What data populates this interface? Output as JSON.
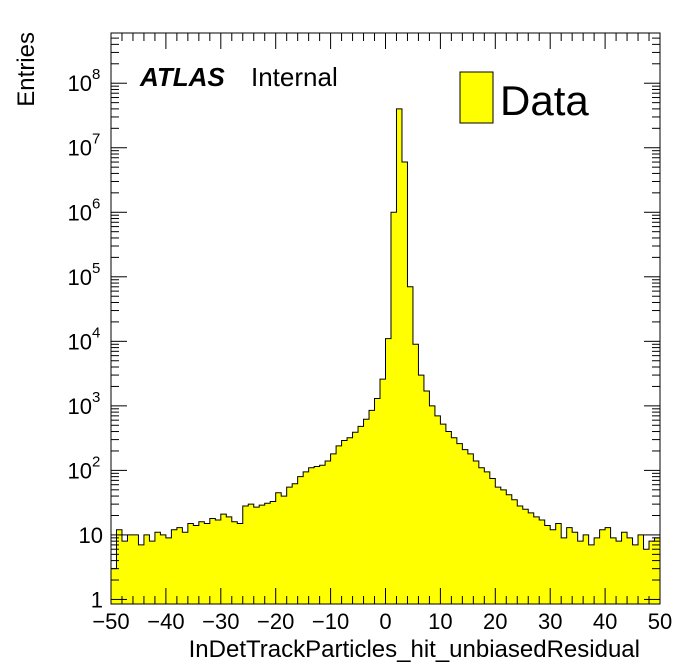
{
  "chart_data": {
    "type": "bar",
    "xlabel": "InDetTrackParticles_hit_unbiasedResidual",
    "ylabel": "Entries",
    "xlim": [
      -50,
      50
    ],
    "ylim": [
      0.85,
      600000000
    ],
    "y_log_scale": true,
    "grid": false,
    "bin_width": 1,
    "x_tick_labels": [
      "−50",
      "−40",
      "−30",
      "−20",
      "−10",
      "0",
      "10",
      "20",
      "30",
      "40",
      "50"
    ],
    "y_tick_labels": [
      {
        "value": 1,
        "base": "1",
        "exp": ""
      },
      {
        "value": 10,
        "base": "10",
        "exp": ""
      },
      {
        "value": 100,
        "base": "10",
        "exp": "2"
      },
      {
        "value": 1000,
        "base": "10",
        "exp": "3"
      },
      {
        "value": 10000,
        "base": "10",
        "exp": "4"
      },
      {
        "value": 100000,
        "base": "10",
        "exp": "5"
      },
      {
        "value": 1000000,
        "base": "10",
        "exp": "6"
      },
      {
        "value": 10000000,
        "base": "10",
        "exp": "7"
      },
      {
        "value": 100000000,
        "base": "10",
        "exp": "8"
      }
    ],
    "series": [
      {
        "name": "Data",
        "color": "#ffff00",
        "bin_edges_start": -50,
        "values": [
          3,
          12,
          8,
          10,
          10,
          7,
          10,
          8,
          11,
          10,
          9,
          12,
          13,
          11,
          15,
          14,
          16,
          15,
          18,
          17,
          21,
          19,
          16,
          15,
          28,
          30,
          27,
          29,
          31,
          33,
          45,
          40,
          55,
          62,
          80,
          95,
          110,
          115,
          120,
          140,
          180,
          240,
          290,
          320,
          390,
          480,
          620,
          850,
          1300,
          2600,
          11000,
          1000000,
          40000000,
          6000000,
          70000,
          9000,
          3000,
          1700,
          1000,
          700,
          520,
          400,
          320,
          260,
          210,
          180,
          140,
          110,
          95,
          75,
          55,
          50,
          42,
          35,
          28,
          25,
          22,
          19,
          17,
          14,
          12,
          15,
          9,
          13,
          11,
          8,
          10,
          7,
          9,
          12,
          13,
          9,
          8,
          11,
          9,
          7,
          10,
          6,
          8,
          9
        ]
      }
    ],
    "legend": {
      "placement": "top-right",
      "label": "Data",
      "color": "#ffff00"
    },
    "annotation": {
      "experiment": "ATLAS",
      "status": "Internal"
    }
  }
}
